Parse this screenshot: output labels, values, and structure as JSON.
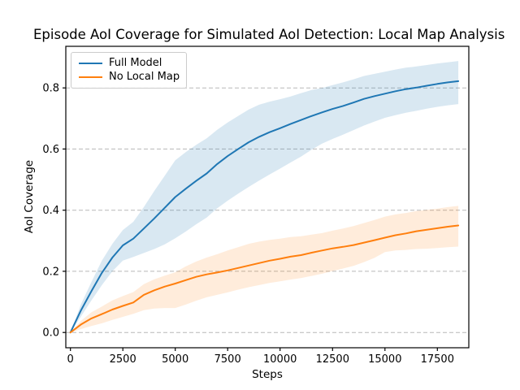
{
  "figure": {
    "title": "Episode AoI Coverage for Simulated AoI Detection: Local Map Analysis",
    "xlabel": "Steps",
    "ylabel": "AoI Coverage"
  },
  "legend": {
    "items": [
      {
        "label": "Full Model",
        "color": "#1f77b4"
      },
      {
        "label": "No Local Map",
        "color": "#ff7f0e"
      }
    ]
  },
  "chart_data": {
    "type": "line",
    "title": "Episode AoI Coverage for Simulated AoI Detection: Local Map Analysis",
    "xlabel": "Steps",
    "ylabel": "AoI Coverage",
    "x_ticks": [
      0,
      2500,
      5000,
      7500,
      10000,
      12500,
      15000,
      17500
    ],
    "y_ticks": [
      0.0,
      0.2,
      0.4,
      0.6,
      0.8
    ],
    "xlim": [
      -220,
      19000
    ],
    "ylim": [
      -0.05,
      0.936
    ],
    "grid": "y-axis dashed",
    "legend_position": "upper-left",
    "spine_color": "#000000",
    "grid_color": "#b8b8b8",
    "x": [
      0,
      500,
      1000,
      1500,
      2000,
      2500,
      3000,
      3500,
      4000,
      4500,
      5000,
      5500,
      6000,
      6500,
      7000,
      7500,
      8000,
      8500,
      9000,
      9500,
      10000,
      10500,
      11000,
      11500,
      12000,
      12500,
      13000,
      13500,
      14000,
      14500,
      15000,
      15500,
      16000,
      16500,
      17000,
      17500,
      18000,
      18500
    ],
    "series": [
      {
        "name": "Full Model",
        "color": "#1f77b4",
        "band_color": "rgba(31,119,180,0.17)",
        "values": [
          0.0,
          0.072,
          0.135,
          0.195,
          0.245,
          0.285,
          0.307,
          0.34,
          0.373,
          0.408,
          0.443,
          0.47,
          0.496,
          0.52,
          0.551,
          0.577,
          0.6,
          0.622,
          0.64,
          0.655,
          0.668,
          0.682,
          0.695,
          0.708,
          0.72,
          0.731,
          0.741,
          0.752,
          0.764,
          0.773,
          0.781,
          0.789,
          0.796,
          0.801,
          0.807,
          0.813,
          0.818,
          0.822
        ],
        "band_upper": [
          0.0,
          0.092,
          0.165,
          0.235,
          0.29,
          0.335,
          0.362,
          0.41,
          0.463,
          0.513,
          0.563,
          0.59,
          0.614,
          0.635,
          0.663,
          0.687,
          0.708,
          0.729,
          0.745,
          0.755,
          0.763,
          0.772,
          0.783,
          0.793,
          0.8,
          0.809,
          0.818,
          0.828,
          0.839,
          0.846,
          0.853,
          0.86,
          0.866,
          0.87,
          0.875,
          0.88,
          0.884,
          0.888
        ],
        "band_lower": [
          0.0,
          0.052,
          0.105,
          0.155,
          0.2,
          0.235,
          0.247,
          0.26,
          0.273,
          0.288,
          0.308,
          0.33,
          0.354,
          0.376,
          0.406,
          0.431,
          0.454,
          0.476,
          0.497,
          0.517,
          0.536,
          0.556,
          0.575,
          0.598,
          0.618,
          0.633,
          0.647,
          0.662,
          0.677,
          0.69,
          0.702,
          0.711,
          0.719,
          0.725,
          0.732,
          0.738,
          0.743,
          0.747
        ]
      },
      {
        "name": "No Local Map",
        "color": "#ff7f0e",
        "band_color": "rgba(255,127,14,0.15)",
        "values": [
          0.0,
          0.026,
          0.046,
          0.06,
          0.075,
          0.087,
          0.098,
          0.123,
          0.138,
          0.15,
          0.16,
          0.171,
          0.182,
          0.19,
          0.196,
          0.203,
          0.211,
          0.219,
          0.227,
          0.235,
          0.241,
          0.248,
          0.253,
          0.261,
          0.268,
          0.275,
          0.28,
          0.286,
          0.294,
          0.302,
          0.31,
          0.318,
          0.324,
          0.331,
          0.336,
          0.341,
          0.346,
          0.35
        ],
        "band_upper": [
          0.0,
          0.038,
          0.066,
          0.085,
          0.105,
          0.119,
          0.132,
          0.158,
          0.174,
          0.186,
          0.197,
          0.216,
          0.232,
          0.245,
          0.256,
          0.268,
          0.279,
          0.29,
          0.297,
          0.303,
          0.307,
          0.312,
          0.315,
          0.32,
          0.325,
          0.333,
          0.34,
          0.348,
          0.358,
          0.368,
          0.379,
          0.386,
          0.391,
          0.397,
          0.401,
          0.405,
          0.41,
          0.414
        ],
        "band_lower": [
          0.0,
          0.011,
          0.021,
          0.03,
          0.041,
          0.051,
          0.061,
          0.073,
          0.078,
          0.08,
          0.08,
          0.091,
          0.104,
          0.115,
          0.123,
          0.131,
          0.14,
          0.148,
          0.155,
          0.162,
          0.167,
          0.173,
          0.178,
          0.185,
          0.192,
          0.201,
          0.209,
          0.218,
          0.23,
          0.244,
          0.263,
          0.268,
          0.27,
          0.273,
          0.274,
          0.276,
          0.279,
          0.281
        ]
      }
    ]
  }
}
